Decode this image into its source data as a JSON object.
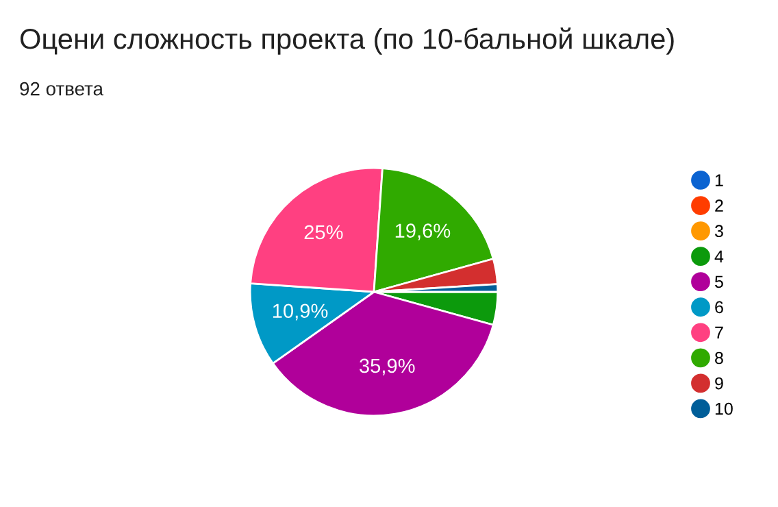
{
  "chart_data": {
    "type": "pie",
    "title": "Оцени сложность проекта (по 10-бальной шкале)",
    "subtitle": "92 ответа",
    "categories": [
      "1",
      "2",
      "3",
      "4",
      "5",
      "6",
      "7",
      "8",
      "9",
      "10"
    ],
    "values": [
      0,
      0,
      0,
      4.3,
      35.9,
      10.9,
      25,
      19.6,
      3.3,
      1.0
    ],
    "value_labels": [
      null,
      null,
      null,
      null,
      "35,9%",
      "10,9%",
      "25%",
      "19,6%",
      null,
      null
    ],
    "colors": [
      "#0b63d1",
      "#ff3d00",
      "#ff9800",
      "#0c9a0c",
      "#b0009a",
      "#0099c6",
      "#ff4081",
      "#30aa00",
      "#d32f2f",
      "#005e99"
    ],
    "legend": "right"
  }
}
